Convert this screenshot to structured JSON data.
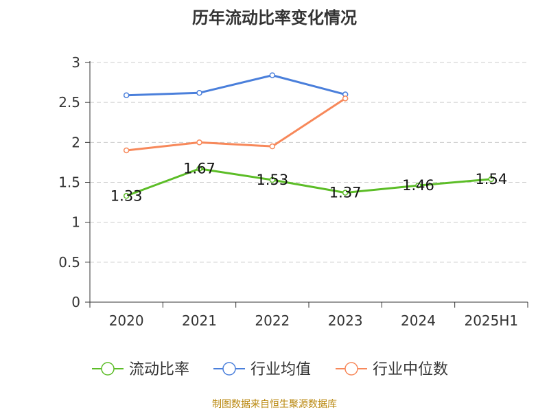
{
  "chart_data": {
    "type": "line",
    "title": "历年流动比率变化情况",
    "categories": [
      "2020",
      "2021",
      "2022",
      "2023",
      "2024",
      "2025H1"
    ],
    "ylim": [
      0,
      3
    ],
    "yticks": [
      0,
      0.5,
      1,
      1.5,
      2,
      2.5,
      3
    ],
    "ytick_labels": [
      "0",
      "0.5",
      "1",
      "1.5",
      "2",
      "2.5",
      "3"
    ],
    "grid": true,
    "legend_position": "bottom",
    "series": [
      {
        "name": "流动比率",
        "color": "#5cbd27",
        "values": [
          1.33,
          1.67,
          1.53,
          1.37,
          1.46,
          1.54
        ],
        "labels": [
          "1.33",
          "1.67",
          "1.53",
          "1.37",
          "1.46",
          "1.54"
        ]
      },
      {
        "name": "行业均值",
        "color": "#4a7fdb",
        "values": [
          2.59,
          2.62,
          2.84,
          2.6,
          null,
          null
        ]
      },
      {
        "name": "行业中位数",
        "color": "#f7885a",
        "values": [
          1.9,
          2.0,
          1.95,
          2.55,
          null,
          null
        ]
      }
    ]
  },
  "footer": {
    "text": "制图数据来自恒生聚源数据库",
    "color": "#b8860b"
  }
}
